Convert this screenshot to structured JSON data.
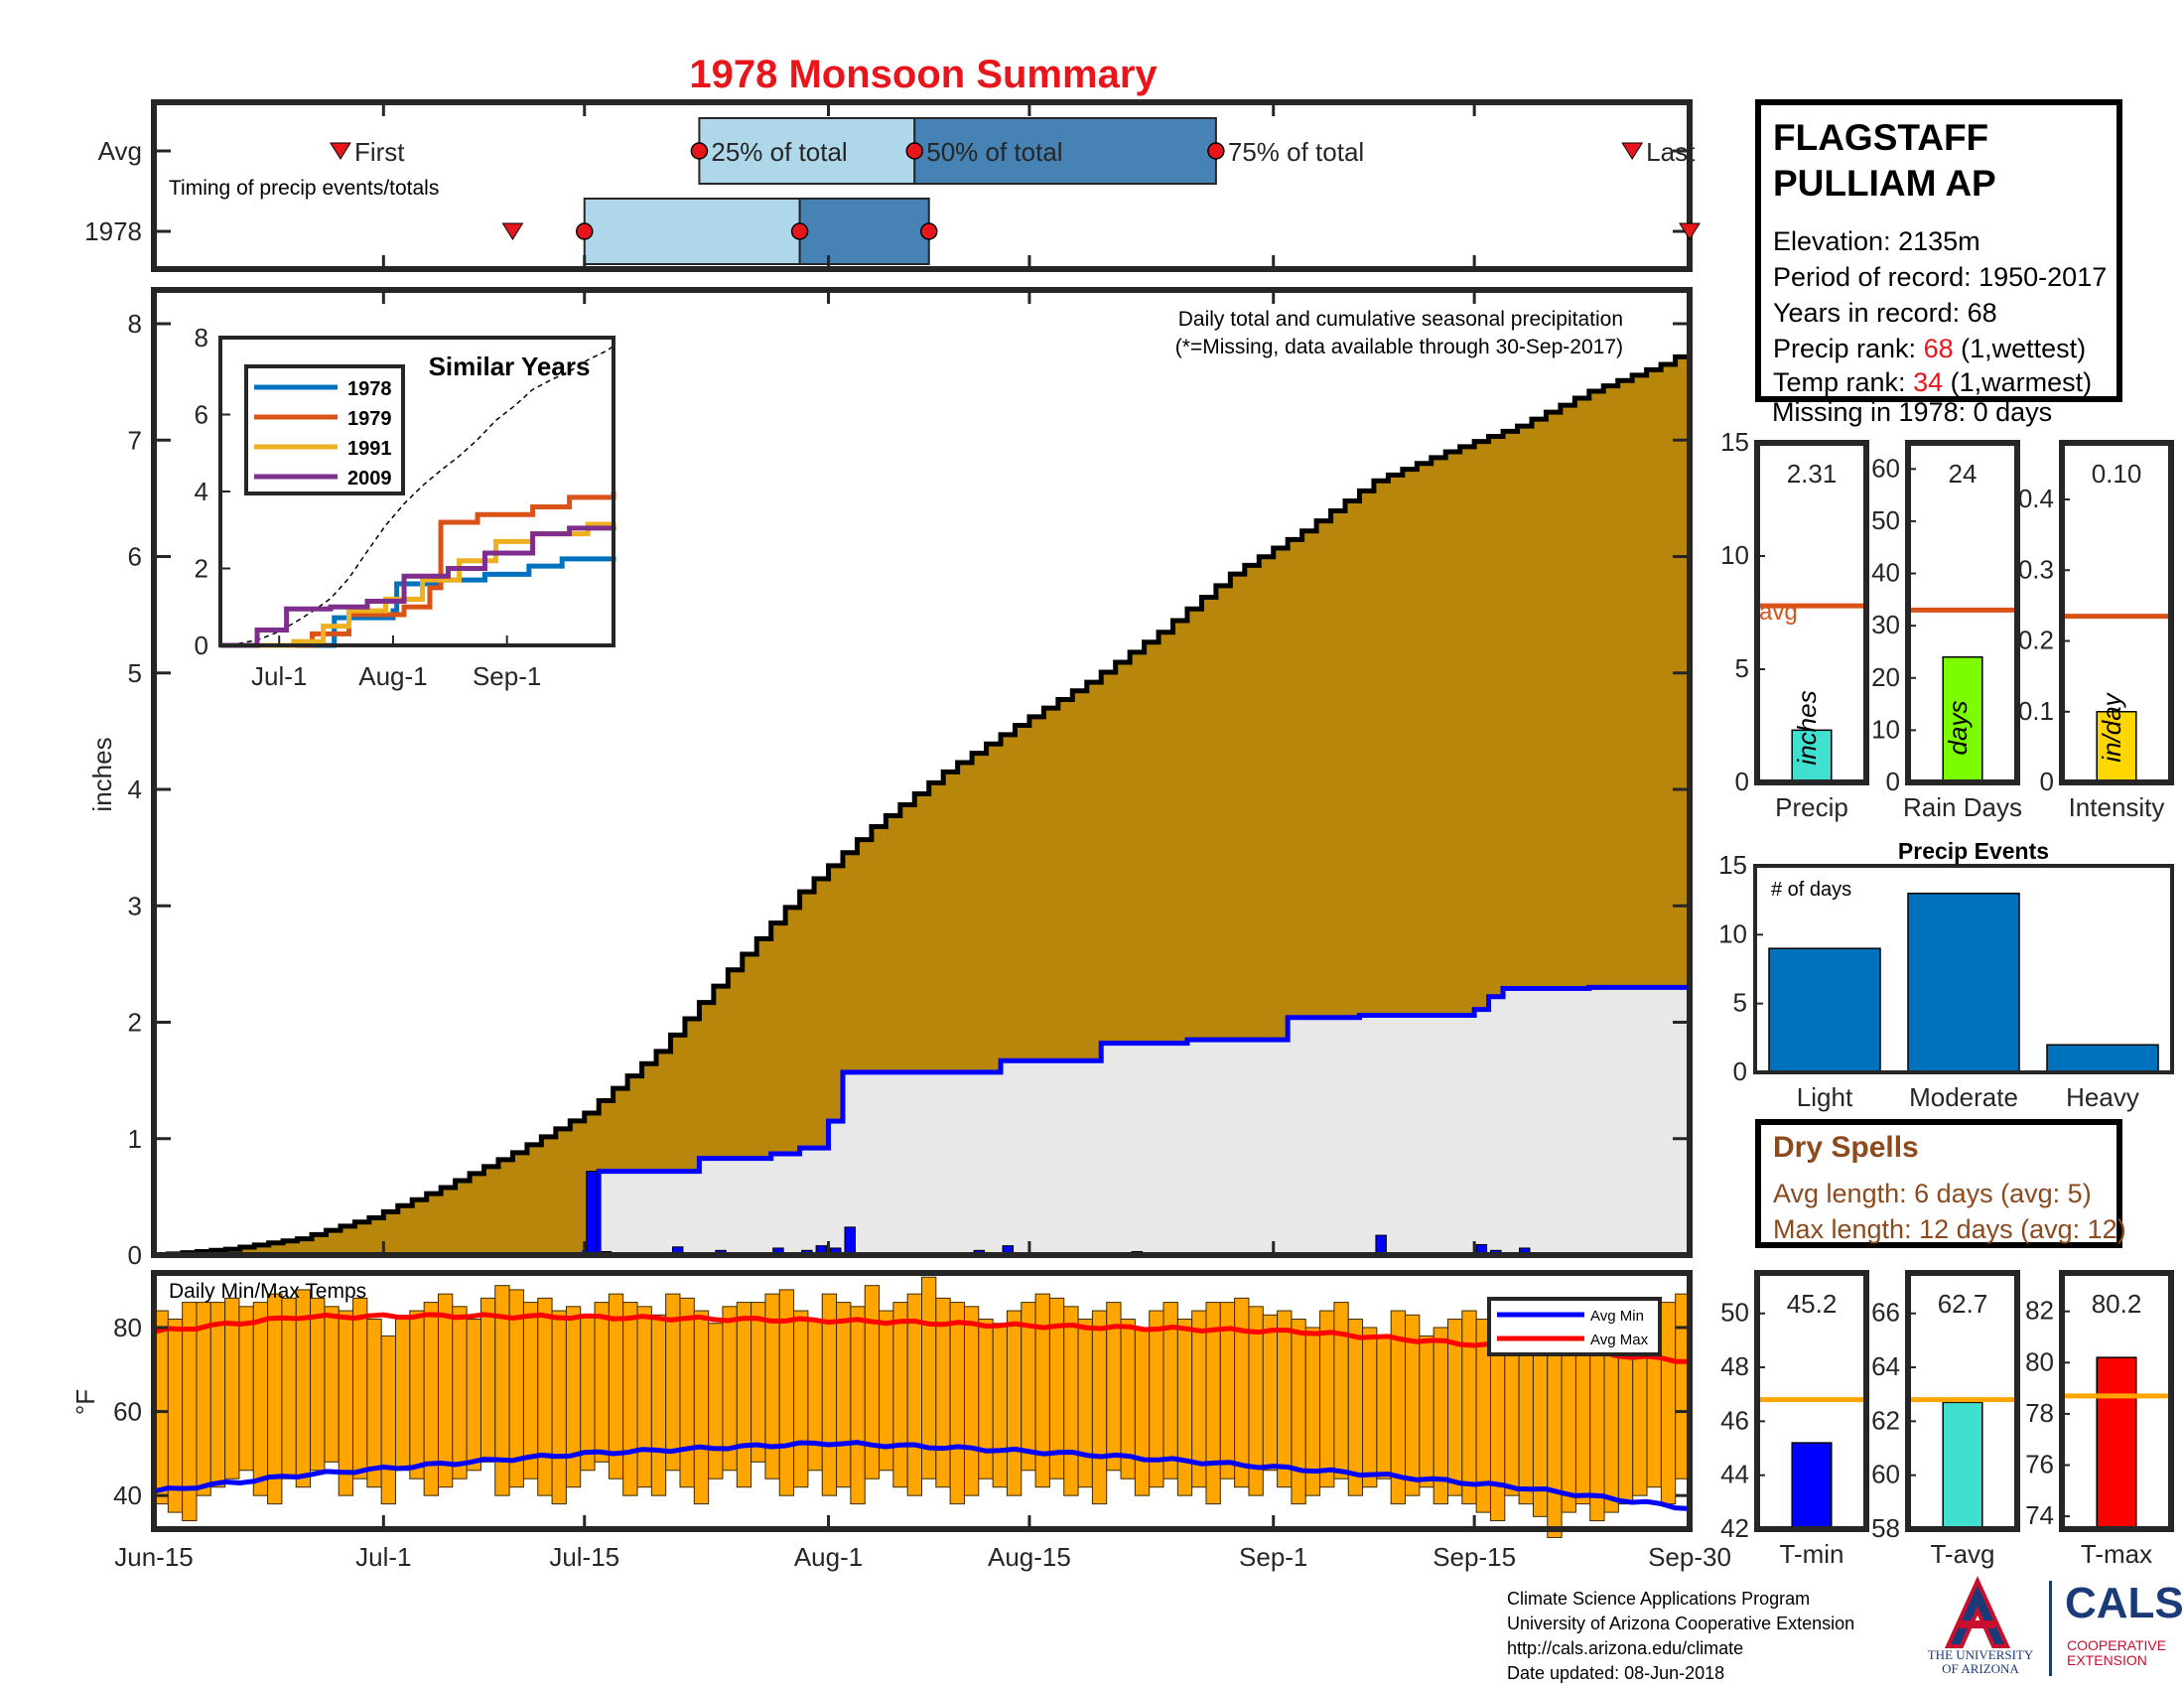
{
  "title": "1978 Monsoon Summary",
  "timing": {
    "label": "Timing of precip events/totals",
    "rows": [
      "Avg",
      "1978"
    ],
    "avg": {
      "first": "Jun-28",
      "p25": "Jul-23",
      "p50": "Aug-7",
      "p75": "Aug-28",
      "last": "Sep-26"
    },
    "year": {
      "first": "Jul-10",
      "p25": "Jul-15",
      "p50": "Jul-30",
      "p75": "Aug-8",
      "last": "Sep-30"
    },
    "marker_labels": {
      "first": "First",
      "p25": "25% of total",
      "p50": "50% of total",
      "p75": "75% of total",
      "last": "Last"
    },
    "colors": {
      "light": "#aed8ea",
      "dark": "#4682b4",
      "marker": "#e8161b"
    }
  },
  "station": {
    "name_line1": "FLAGSTAFF",
    "name_line2": "PULLIAM AP",
    "elevation": "Elevation: 2135m",
    "period": "Period of record: 1950-2017",
    "years": "Years in record: 68",
    "precip_rank_label": "Precip rank: ",
    "precip_rank_value": "68",
    "precip_rank_note": " (1,wettest)",
    "temp_rank_label": "Temp rank: ",
    "temp_rank_value": "34",
    "temp_rank_note": " (1,warmest)",
    "missing": "Missing in 1978: 0 days"
  },
  "dry_spells": {
    "title": "Dry Spells",
    "avg_length": "Avg length: 6 days (avg: 5)",
    "max_length": "Max length: 12 days (avg: 12)"
  },
  "footer": {
    "line1": "Climate Science Applications Program",
    "line2": "University of Arizona Cooperative Extension",
    "line3": "http://cals.arizona.edu/climate",
    "line4": "Date updated: 08-Jun-2018"
  },
  "logos": {
    "uni_line1": "THE UNIVERSITY",
    "uni_line2": "OF ARIZONA",
    "cals": "CALS",
    "coop_line1": "COOPERATIVE",
    "coop_line2": "EXTENSION"
  },
  "chart_data": [
    {
      "type": "area",
      "name": "main",
      "text_title": "Daily total and cumulative seasonal precipitation",
      "note": "(*=Missing, data available through 30-Sep-2017)",
      "ylabel": "inches",
      "ylim": [
        0,
        8.3
      ],
      "yticks": [
        0,
        1,
        2,
        3,
        4,
        5,
        6,
        7,
        8
      ],
      "x_start": "Jun-15",
      "x_end": "Sep-30",
      "xticks": [
        "Jun-15",
        "Jul-1",
        "Jul-15",
        "Aug-1",
        "Aug-15",
        "Sep-1",
        "Sep-15",
        "Sep-30"
      ],
      "xtick_days": [
        0,
        16,
        30,
        47,
        61,
        78,
        92,
        107
      ],
      "avg_cumulative": {
        "days": [
          0,
          5,
          10,
          15,
          20,
          25,
          30,
          35,
          40,
          45,
          50,
          55,
          60,
          65,
          70,
          75,
          80,
          85,
          90,
          95,
          100,
          105,
          107
        ],
        "values": [
          0,
          0.05,
          0.14,
          0.32,
          0.58,
          0.88,
          1.22,
          1.75,
          2.45,
          3.12,
          3.68,
          4.15,
          4.55,
          4.92,
          5.35,
          5.85,
          6.22,
          6.65,
          6.9,
          7.12,
          7.42,
          7.65,
          7.78
        ]
      },
      "year_cumulative": {
        "days": [
          0,
          30,
          31,
          35,
          38,
          40,
          43,
          45,
          47,
          48,
          57,
          59,
          66,
          72,
          78,
          79,
          83,
          84,
          92,
          93,
          94,
          95,
          100,
          107
        ],
        "values": [
          0,
          0.02,
          0.72,
          0.72,
          0.83,
          0.83,
          0.87,
          0.92,
          1.15,
          1.57,
          1.57,
          1.67,
          1.82,
          1.85,
          1.85,
          2.04,
          2.04,
          2.06,
          2.11,
          2.22,
          2.29,
          2.29,
          2.3,
          2.31
        ]
      },
      "daily": {
        "days": [
          30,
          31,
          36,
          39,
          43,
          45,
          46,
          47,
          48,
          57,
          59,
          67,
          68,
          85,
          92,
          93,
          95
        ],
        "values": [
          0.72,
          0.03,
          0.07,
          0.04,
          0.06,
          0.04,
          0.08,
          0.06,
          0.24,
          0.04,
          0.08,
          0.02,
          0.03,
          0.17,
          0.09,
          0.04,
          0.06
        ]
      },
      "colors": {
        "avg_fill": "#b8860b",
        "year_fill": "#e8e8e8",
        "year_line": "#0000ff",
        "daily": "#0000ff"
      }
    },
    {
      "type": "line",
      "name": "similar_years",
      "title": "Similar Years",
      "ylim": [
        0,
        8
      ],
      "yticks": [
        0,
        2,
        4,
        6,
        8
      ],
      "xticks": [
        "Jul-1",
        "Aug-1",
        "Sep-1"
      ],
      "xtick_days": [
        16,
        47,
        78
      ],
      "series": [
        {
          "name": "1978",
          "color": "#0072bd",
          "days": [
            0,
            30,
            31,
            47,
            48,
            59,
            72,
            84,
            93,
            107
          ],
          "values": [
            0,
            0,
            0.72,
            0.9,
            1.6,
            1.7,
            1.85,
            2.06,
            2.25,
            2.31
          ]
        },
        {
          "name": "1979",
          "color": "#d95319",
          "days": [
            0,
            25,
            35,
            50,
            57,
            60,
            70,
            85,
            95,
            107
          ],
          "values": [
            0,
            0.3,
            0.8,
            1.0,
            1.5,
            3.2,
            3.4,
            3.6,
            3.85,
            4.0
          ]
        },
        {
          "name": "1991",
          "color": "#edb120",
          "days": [
            0,
            20,
            28,
            35,
            45,
            55,
            65,
            75,
            85,
            100,
            107
          ],
          "values": [
            0,
            0.1,
            0.5,
            0.9,
            1.2,
            1.7,
            2.2,
            2.7,
            2.9,
            3.15,
            3.2
          ]
        },
        {
          "name": "2009",
          "color": "#7e2f8e",
          "days": [
            0,
            10,
            18,
            30,
            40,
            50,
            62,
            72,
            85,
            95,
            107
          ],
          "values": [
            0,
            0.4,
            0.95,
            1.0,
            1.15,
            1.8,
            2.0,
            2.4,
            2.9,
            3.05,
            3.1
          ]
        }
      ],
      "avg_dashed": true
    },
    {
      "type": "bar",
      "name": "precip_total",
      "label": "Precip",
      "unit": "inches",
      "value": 2.31,
      "value_text": "2.31",
      "avg": 7.8,
      "ylim": [
        0,
        15
      ],
      "yticks": [
        0,
        5,
        10,
        15
      ],
      "color": "#40e0d0",
      "avg_label": "avg"
    },
    {
      "type": "bar",
      "name": "rain_days",
      "label": "Rain Days",
      "unit": "days",
      "value": 24,
      "value_text": "24",
      "avg": 33,
      "ylim": [
        0,
        65
      ],
      "yticks": [
        0,
        10,
        20,
        30,
        40,
        50,
        60
      ],
      "color": "#7cfc00"
    },
    {
      "type": "bar",
      "name": "intensity",
      "label": "Intensity",
      "unit": "in/day",
      "value": 0.1,
      "value_text": "0.10",
      "avg": 0.235,
      "ylim": [
        0,
        0.48
      ],
      "yticks": [
        0,
        0.1,
        0.2,
        0.3,
        0.4
      ],
      "ytick_labels": [
        "0",
        "0.1",
        "0.2",
        "0.3",
        "0.4"
      ],
      "color": "#ffd700"
    },
    {
      "type": "bar",
      "name": "precip_events",
      "title": "Precip Events",
      "ylabel": "# of days",
      "categories": [
        "Light",
        "Moderate",
        "Heavy"
      ],
      "values": [
        9,
        13,
        2
      ],
      "ylim": [
        0,
        15
      ],
      "yticks": [
        0,
        5,
        10,
        15
      ],
      "color": "#0072bd"
    },
    {
      "type": "bar",
      "name": "daily_temps",
      "title": "Daily Min/Max Temps",
      "ylabel": "°F",
      "ylim": [
        32,
        93
      ],
      "yticks": [
        40,
        60,
        80
      ],
      "legend": [
        {
          "name": "Avg Min",
          "color": "#0000ff"
        },
        {
          "name": "Avg Max",
          "color": "#ff0000"
        }
      ],
      "bar_color": "#ffa500",
      "avg_max": {
        "days": [
          0,
          10,
          20,
          30,
          40,
          50,
          60,
          70,
          80,
          90,
          100,
          107
        ],
        "values": [
          79,
          82.5,
          82.8,
          82.5,
          82,
          81.5,
          80.5,
          79.8,
          79,
          76.5,
          74,
          72
        ]
      },
      "avg_min": {
        "days": [
          0,
          10,
          20,
          30,
          40,
          47,
          55,
          65,
          75,
          85,
          95,
          107
        ],
        "values": [
          41,
          44.8,
          47.5,
          50,
          51.5,
          52.5,
          51.5,
          49.8,
          47.5,
          45,
          42,
          37
        ]
      },
      "highs": [
        84,
        82,
        86,
        86,
        86,
        87,
        85,
        86,
        88,
        87,
        89,
        87,
        85,
        84,
        87,
        82,
        78,
        82,
        84,
        86,
        88,
        85,
        82,
        87,
        90,
        89,
        86,
        87,
        84,
        85,
        83,
        86,
        88,
        86,
        85,
        83,
        88,
        87,
        84,
        81,
        85,
        86,
        86,
        88,
        89,
        84,
        82,
        88,
        86,
        85,
        90,
        84,
        86,
        88,
        92,
        87,
        86,
        85,
        82,
        81,
        84,
        86,
        88,
        87,
        85,
        82,
        84,
        86,
        82,
        80,
        84,
        86,
        82,
        84,
        86,
        86,
        87,
        85,
        83,
        84,
        82,
        80,
        84,
        86,
        82,
        80,
        78,
        84,
        83,
        78,
        80,
        82,
        84,
        82,
        76,
        82,
        78,
        74,
        76,
        78,
        82,
        80,
        78,
        80,
        82,
        84,
        86,
        88
      ],
      "lows": [
        38,
        36,
        34,
        40,
        42,
        44,
        46,
        40,
        38,
        44,
        42,
        46,
        48,
        40,
        44,
        42,
        38,
        46,
        44,
        40,
        42,
        44,
        46,
        48,
        40,
        42,
        44,
        40,
        38,
        42,
        46,
        48,
        44,
        40,
        42,
        40,
        46,
        42,
        38,
        44,
        46,
        42,
        48,
        44,
        40,
        42,
        46,
        40,
        42,
        38,
        44,
        46,
        42,
        40,
        44,
        42,
        38,
        40,
        44,
        42,
        40,
        46,
        42,
        44,
        40,
        42,
        38,
        46,
        44,
        40,
        42,
        44,
        40,
        42,
        38,
        44,
        42,
        40,
        46,
        42,
        38,
        40,
        42,
        44,
        40,
        42,
        44,
        38,
        40,
        42,
        38,
        40,
        38,
        36,
        34,
        40,
        38,
        35,
        30,
        36,
        38,
        34,
        36,
        38,
        40,
        42,
        38,
        44
      ]
    },
    {
      "type": "bar",
      "name": "t_min",
      "label": "T-min",
      "value": 45.2,
      "value_text": "45.2",
      "avg": 46.8,
      "ylim": [
        42,
        51.5
      ],
      "yticks": [
        42,
        44,
        46,
        48,
        50
      ],
      "color": "#0000ff"
    },
    {
      "type": "bar",
      "name": "t_avg",
      "label": "T-avg",
      "value": 62.7,
      "value_text": "62.7",
      "avg": 62.8,
      "ylim": [
        58,
        67.5
      ],
      "yticks": [
        58,
        60,
        62,
        64,
        66
      ],
      "color": "#40e0d0"
    },
    {
      "type": "bar",
      "name": "t_max",
      "label": "T-max",
      "value": 80.2,
      "value_text": "80.2",
      "avg": 78.7,
      "ylim": [
        73.5,
        83.5
      ],
      "yticks": [
        74,
        76,
        78,
        80,
        82
      ],
      "color": "#ff0000"
    }
  ]
}
